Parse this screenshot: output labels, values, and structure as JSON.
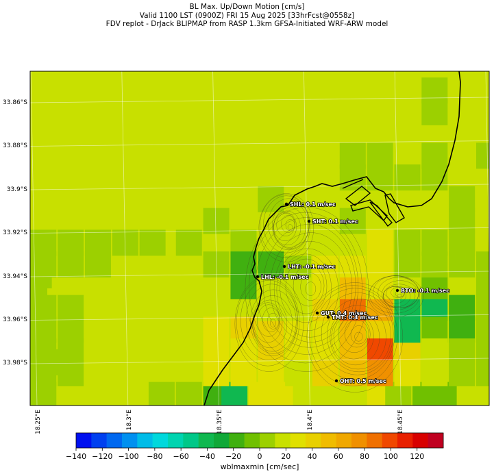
{
  "title": {
    "line1": "BL Max. Up/Down Motion [cm/s]",
    "line2": "Valid 1100 LST (0900Z) FRI 15 Aug 2025 [33hrFcst@0558z]",
    "line3": "FDV replot - DrJack BLIPMAP from RASP 1.3km GFSA-Initiated WRF-ARW model"
  },
  "lat_labels": [
    "33.86°S",
    "33.88°S",
    "33.9°S",
    "33.92°S",
    "33.94°S",
    "33.96°S",
    "33.98°S"
  ],
  "lon_labels": [
    "18.25°E",
    "18.3°E",
    "18.35°E",
    "18.4°E",
    "18.45°E"
  ],
  "sites": [
    {
      "code": "SHL",
      "label": "SHL: 0.1 m/sec"
    },
    {
      "code": "SHT",
      "label": "SHT: 0.1 m/sec"
    },
    {
      "code": "LHT",
      "label": "LHT: -0.1 m/sec"
    },
    {
      "code": "LHL",
      "label": "LHL: -0.1 m/sec"
    },
    {
      "code": "BTO",
      "label": "BTO: -0.1 m/sec"
    },
    {
      "code": "GUT",
      "label": "GUT: 0.4 m/sec"
    },
    {
      "code": "TMT",
      "label": "TMT: 0.4 m/sec"
    },
    {
      "code": "OHT",
      "label": "OHT: 0.5 m/sec"
    }
  ],
  "colorbar": {
    "title": "wblmaxmin [cm/sec]",
    "ticks": [
      "−140",
      "−120",
      "−100",
      "−80",
      "−60",
      "−40",
      "−20",
      "0",
      "20",
      "40",
      "60",
      "80",
      "100",
      "120"
    ],
    "colors": [
      "#0010f0",
      "#0040f0",
      "#0068f0",
      "#0090f0",
      "#00bce8",
      "#00d8dc",
      "#00d4b0",
      "#00c888",
      "#10b850",
      "#10a838",
      "#40b010",
      "#70c000",
      "#9cd000",
      "#c8e000",
      "#e0e000",
      "#e8d000",
      "#f0bc00",
      "#f0a800",
      "#f09000",
      "#f07000",
      "#f04800",
      "#e82000",
      "#d80000",
      "#c00020"
    ]
  },
  "grid_cells": [
    {
      "lon_deg": 18.25,
      "lat_deg": -33.9475,
      "value": 8
    },
    {
      "lon_deg": 18.25,
      "lat_deg": -33.9525,
      "value": 8
    },
    {
      "lon_deg": 18.2525,
      "lat_deg": -33.94,
      "value": 8
    },
    {
      "lon_deg": 18.2675,
      "lat_deg": -33.98,
      "value": 8
    },
    {
      "lon_deg": 18.32,
      "lat_deg": -33.995,
      "value": 8
    },
    {
      "lon_deg": 18.35,
      "lat_deg": -33.995,
      "value": -18
    },
    {
      "lon_deg": 18.36,
      "lat_deg": -33.995,
      "value": -45
    },
    {
      "lon_deg": 18.375,
      "lat_deg": -33.995,
      "value": 35
    },
    {
      "lon_deg": 18.385,
      "lat_deg": -33.995,
      "value": 25
    },
    {
      "lon_deg": 18.44,
      "lat_deg": -33.995,
      "value": 25
    },
    {
      "lon_deg": 18.45,
      "lat_deg": -33.995,
      "value": 8
    },
    {
      "lon_deg": 18.465,
      "lat_deg": -33.995,
      "value": -8
    },
    {
      "lon_deg": 18.475,
      "lat_deg": -33.995,
      "value": -8
    },
    {
      "lon_deg": 18.35,
      "lat_deg": -33.965,
      "value": 25
    },
    {
      "lon_deg": 18.365,
      "lat_deg": -33.965,
      "value": 45
    },
    {
      "lon_deg": 18.38,
      "lat_deg": -33.965,
      "value": 45
    },
    {
      "lon_deg": 18.395,
      "lat_deg": -33.965,
      "value": 35
    },
    {
      "lon_deg": 18.41,
      "lat_deg": -33.965,
      "value": 25
    },
    {
      "lon_deg": 18.425,
      "lat_deg": -33.965,
      "value": 55
    },
    {
      "lon_deg": 18.44,
      "lat_deg": -33.965,
      "value": 45
    },
    {
      "lon_deg": 18.35,
      "lat_deg": -33.975,
      "value": 25
    },
    {
      "lon_deg": 18.365,
      "lat_deg": -33.975,
      "value": 35
    },
    {
      "lon_deg": 18.38,
      "lat_deg": -33.975,
      "value": 45
    },
    {
      "lon_deg": 18.395,
      "lat_deg": -33.975,
      "value": 25
    },
    {
      "lon_deg": 18.41,
      "lat_deg": -33.975,
      "value": 25
    },
    {
      "lon_deg": 18.425,
      "lat_deg": -33.975,
      "value": 55
    },
    {
      "lon_deg": 18.44,
      "lat_deg": -33.975,
      "value": 95
    },
    {
      "lon_deg": 18.455,
      "lat_deg": -33.975,
      "value": 45
    },
    {
      "lon_deg": 18.35,
      "lat_deg": -33.985,
      "value": 25
    },
    {
      "lon_deg": 18.365,
      "lat_deg": -33.985,
      "value": 35
    },
    {
      "lon_deg": 18.38,
      "lat_deg": -33.985,
      "value": 35
    },
    {
      "lon_deg": 18.395,
      "lat_deg": -33.985,
      "value": 20
    },
    {
      "lon_deg": 18.41,
      "lat_deg": -33.985,
      "value": 45
    },
    {
      "lon_deg": 18.425,
      "lat_deg": -33.985,
      "value": 55
    },
    {
      "lon_deg": 18.44,
      "lat_deg": -33.985,
      "value": 75
    },
    {
      "lon_deg": 18.455,
      "lat_deg": -33.985,
      "value": 25
    },
    {
      "lon_deg": 18.38,
      "lat_deg": -33.955,
      "value": 20
    },
    {
      "lon_deg": 18.395,
      "lat_deg": -33.955,
      "value": 20
    },
    {
      "lon_deg": 18.41,
      "lat_deg": -33.955,
      "value": 45
    },
    {
      "lon_deg": 18.425,
      "lat_deg": -33.955,
      "value": 85
    },
    {
      "lon_deg": 18.44,
      "lat_deg": -33.955,
      "value": 65
    },
    {
      "lon_deg": 18.455,
      "lat_deg": -33.955,
      "value": -45
    },
    {
      "lon_deg": 18.47,
      "lat_deg": -33.955,
      "value": -45
    },
    {
      "lon_deg": 18.485,
      "lat_deg": -33.955,
      "value": -18
    },
    {
      "lon_deg": 18.455,
      "lat_deg": -33.965,
      "value": -40
    },
    {
      "lon_deg": 18.47,
      "lat_deg": -33.965,
      "value": -8
    },
    {
      "lon_deg": 18.485,
      "lat_deg": -33.965,
      "value": -18
    },
    {
      "lon_deg": 18.41,
      "lat_deg": -33.945,
      "value": 35
    },
    {
      "lon_deg": 18.425,
      "lat_deg": -33.945,
      "value": 55
    },
    {
      "lon_deg": 18.44,
      "lat_deg": -33.945,
      "value": 35
    },
    {
      "lon_deg": 18.455,
      "lat_deg": -33.945,
      "value": 20
    },
    {
      "lon_deg": 18.47,
      "lat_deg": -33.945,
      "value": -8
    },
    {
      "lon_deg": 18.38,
      "lat_deg": -33.935,
      "value": -18
    },
    {
      "lon_deg": 18.395,
      "lat_deg": -33.935,
      "value": 8
    },
    {
      "lon_deg": 18.41,
      "lat_deg": -33.935,
      "value": 25
    },
    {
      "lon_deg": 18.425,
      "lat_deg": -33.935,
      "value": 25
    },
    {
      "lon_deg": 18.44,
      "lat_deg": -33.935,
      "value": 25
    },
    {
      "lon_deg": 18.455,
      "lat_deg": -33.935,
      "value": 8
    },
    {
      "lon_deg": 18.47,
      "lat_deg": -33.935,
      "value": 8
    },
    {
      "lon_deg": 18.395,
      "lat_deg": -33.925,
      "value": 20
    },
    {
      "lon_deg": 18.41,
      "lat_deg": -33.925,
      "value": 20
    },
    {
      "lon_deg": 18.425,
      "lat_deg": -33.925,
      "value": 20
    },
    {
      "lon_deg": 18.44,
      "lat_deg": -33.925,
      "value": 25
    },
    {
      "lon_deg": 18.455,
      "lat_deg": -33.925,
      "value": 8
    },
    {
      "lon_deg": 18.47,
      "lat_deg": -33.925,
      "value": 8
    },
    {
      "lon_deg": 18.35,
      "lat_deg": -33.915,
      "value": 5
    },
    {
      "lon_deg": 18.365,
      "lat_deg": -33.925,
      "value": 5
    },
    {
      "lon_deg": 18.38,
      "lat_deg": -33.905,
      "value": 5
    },
    {
      "lon_deg": 18.395,
      "lat_deg": -33.915,
      "value": 20
    },
    {
      "lon_deg": 18.41,
      "lat_deg": -33.915,
      "value": 20
    },
    {
      "lon_deg": 18.425,
      "lat_deg": -33.915,
      "value": 8
    },
    {
      "lon_deg": 18.365,
      "lat_deg": -33.945,
      "value": -18
    },
    {
      "lon_deg": 18.365,
      "lat_deg": -33.935,
      "value": -18
    },
    {
      "lon_deg": 18.35,
      "lat_deg": -33.935,
      "value": 5
    },
    {
      "lon_deg": 18.335,
      "lat_deg": -33.925,
      "value": 5
    },
    {
      "lon_deg": 18.425,
      "lat_deg": -33.895,
      "value": 5
    },
    {
      "lon_deg": 18.44,
      "lat_deg": -33.895,
      "value": 5
    },
    {
      "lon_deg": 18.425,
      "lat_deg": -33.885,
      "value": 5
    },
    {
      "lon_deg": 18.44,
      "lat_deg": -33.885,
      "value": 5
    },
    {
      "lon_deg": 18.455,
      "lat_deg": -33.895,
      "value": 5
    },
    {
      "lon_deg": 18.47,
      "lat_deg": -33.895,
      "value": 5
    },
    {
      "lon_deg": 18.47,
      "lat_deg": -33.885,
      "value": 5
    },
    {
      "lon_deg": 18.47,
      "lat_deg": -33.865,
      "value": 5
    },
    {
      "lon_deg": 18.47,
      "lat_deg": -33.855,
      "value": 5
    },
    {
      "lon_deg": 18.485,
      "lat_deg": -33.895,
      "value": 20
    },
    {
      "lon_deg": 18.5,
      "lat_deg": -33.885,
      "value": 5
    },
    {
      "lon_deg": 18.5,
      "lat_deg": -33.865,
      "value": 20
    },
    {
      "lon_deg": 18.485,
      "lat_deg": -33.905,
      "value": 5
    },
    {
      "lon_deg": 18.485,
      "lat_deg": -33.915,
      "value": 5
    },
    {
      "lon_deg": 18.485,
      "lat_deg": -33.925,
      "value": 5
    },
    {
      "lon_deg": 18.485,
      "lat_deg": -33.935,
      "value": 5
    },
    {
      "lon_deg": 18.5,
      "lat_deg": -33.925,
      "value": 20
    },
    {
      "lon_deg": 18.5,
      "lat_deg": -33.935,
      "value": 5
    },
    {
      "lon_deg": 18.5,
      "lat_deg": -33.945,
      "value": 5
    },
    {
      "lon_deg": 18.5,
      "lat_deg": -33.955,
      "value": 5
    },
    {
      "lon_deg": 18.5,
      "lat_deg": -33.965,
      "value": 5
    },
    {
      "lon_deg": 18.5,
      "lat_deg": -33.975,
      "value": 5
    },
    {
      "lon_deg": 18.5,
      "lat_deg": -33.985,
      "value": 5
    },
    {
      "lon_deg": 18.485,
      "lat_deg": -33.975,
      "value": 5
    },
    {
      "lon_deg": 18.485,
      "lat_deg": -33.985,
      "value": 5
    },
    {
      "lon_deg": 18.47,
      "lat_deg": -33.975,
      "value": 20
    },
    {
      "lon_deg": 18.47,
      "lat_deg": -33.985,
      "value": 20
    },
    {
      "lon_deg": 18.255,
      "lat_deg": -33.925,
      "value": 5
    },
    {
      "lon_deg": 18.27,
      "lat_deg": -33.925,
      "value": 5
    },
    {
      "lon_deg": 18.285,
      "lat_deg": -33.925,
      "value": 5
    },
    {
      "lon_deg": 18.3,
      "lat_deg": -33.925,
      "value": 5
    },
    {
      "lon_deg": 18.315,
      "lat_deg": -33.925,
      "value": 5
    },
    {
      "lon_deg": 18.255,
      "lat_deg": -33.935,
      "value": 5
    },
    {
      "lon_deg": 18.27,
      "lat_deg": -33.935,
      "value": 5
    },
    {
      "lon_deg": 18.285,
      "lat_deg": -33.935,
      "value": 5
    },
    {
      "lon_deg": 18.255,
      "lat_deg": -33.955,
      "value": 5
    },
    {
      "lon_deg": 18.255,
      "lat_deg": -33.965,
      "value": 5
    },
    {
      "lon_deg": 18.27,
      "lat_deg": -33.955,
      "value": 5
    },
    {
      "lon_deg": 18.27,
      "lat_deg": -33.965,
      "value": 5
    },
    {
      "lon_deg": 18.27,
      "lat_deg": -33.975,
      "value": 5
    },
    {
      "lon_deg": 18.255,
      "lat_deg": -33.975,
      "value": 5
    },
    {
      "lon_deg": 18.255,
      "lat_deg": -33.985,
      "value": 5
    },
    {
      "lon_deg": 18.27,
      "lat_deg": -33.985,
      "value": 5
    },
    {
      "lon_deg": 18.255,
      "lat_deg": -33.995,
      "value": 5
    },
    {
      "lon_deg": 18.335,
      "lat_deg": -33.995,
      "value": 5
    }
  ]
}
